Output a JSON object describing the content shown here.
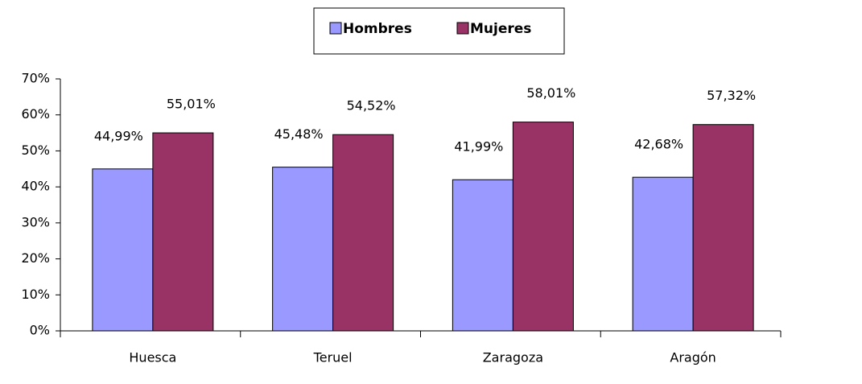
{
  "chart_data": {
    "type": "bar",
    "categories": [
      "Huesca",
      "Teruel",
      "Zaragoza",
      "Aragón"
    ],
    "series": [
      {
        "name": "Hombres",
        "color": "#9999ff",
        "values": [
          44.99,
          45.48,
          41.99,
          42.68
        ],
        "value_labels": [
          "44,99%",
          "45,48%",
          "41,99%",
          "42,68%"
        ]
      },
      {
        "name": "Mujeres",
        "color": "#993366",
        "values": [
          55.01,
          54.52,
          58.01,
          57.32
        ],
        "value_labels": [
          "55,01%",
          "54,52%",
          "58,01%",
          "57,32%"
        ]
      }
    ],
    "ylim": [
      0,
      70
    ],
    "yticks": [
      {
        "value": 0,
        "label": "0%"
      },
      {
        "value": 10,
        "label": "10%"
      },
      {
        "value": 20,
        "label": "20%"
      },
      {
        "value": 30,
        "label": "30%"
      },
      {
        "value": 40,
        "label": "40%"
      },
      {
        "value": 50,
        "label": "50%"
      },
      {
        "value": 60,
        "label": "60%"
      },
      {
        "value": 70,
        "label": "70%"
      }
    ],
    "legend": "top"
  }
}
